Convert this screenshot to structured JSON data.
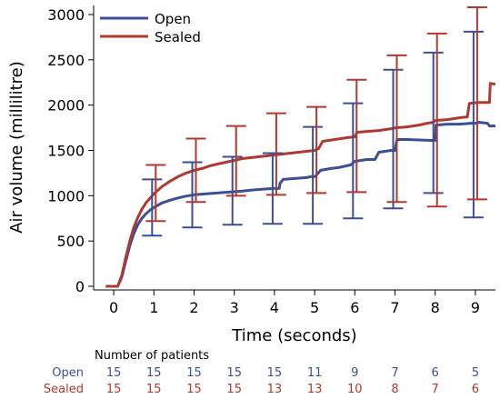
{
  "colors": {
    "open": "#3b4f99",
    "sealed": "#b03a2e",
    "axis": "#000000"
  },
  "chart_data": {
    "type": "line",
    "xlabel": "Time (seconds)",
    "ylabel": "Air volume (millilitre)",
    "xlim": [
      -0.5,
      9.5
    ],
    "ylim": [
      -40,
      3100
    ],
    "x_ticks": [
      0,
      1,
      2,
      3,
      4,
      5,
      6,
      7,
      8,
      9
    ],
    "y_ticks": [
      0,
      500,
      1000,
      1500,
      2000,
      2500,
      3000
    ],
    "grid": false,
    "legend_position": "top-left",
    "series": [
      {
        "name": "Open",
        "color": "#3b4f99",
        "points": [
          [
            -0.2,
            0
          ],
          [
            0.1,
            0
          ],
          [
            0.2,
            100
          ],
          [
            0.3,
            280
          ],
          [
            0.4,
            450
          ],
          [
            0.5,
            580
          ],
          [
            0.6,
            680
          ],
          [
            0.7,
            750
          ],
          [
            0.8,
            800
          ],
          [
            0.9,
            840
          ],
          [
            1.0,
            870
          ],
          [
            1.2,
            920
          ],
          [
            1.4,
            950
          ],
          [
            1.6,
            975
          ],
          [
            1.8,
            995
          ],
          [
            2.0,
            1010
          ],
          [
            2.3,
            1020
          ],
          [
            2.6,
            1030
          ],
          [
            2.9,
            1040
          ],
          [
            3.2,
            1050
          ],
          [
            3.5,
            1065
          ],
          [
            3.8,
            1075
          ],
          [
            4.0,
            1080
          ],
          [
            4.12,
            1080
          ],
          [
            4.14,
            1140
          ],
          [
            4.22,
            1180
          ],
          [
            4.5,
            1190
          ],
          [
            4.8,
            1200
          ],
          [
            4.9,
            1210
          ],
          [
            5.0,
            1210
          ],
          [
            5.05,
            1230
          ],
          [
            5.15,
            1280
          ],
          [
            5.4,
            1300
          ],
          [
            5.6,
            1310
          ],
          [
            5.8,
            1330
          ],
          [
            5.9,
            1340
          ],
          [
            6.0,
            1380
          ],
          [
            6.3,
            1400
          ],
          [
            6.5,
            1400
          ],
          [
            6.6,
            1480
          ],
          [
            6.9,
            1500
          ],
          [
            7.0,
            1500
          ],
          [
            7.05,
            1620
          ],
          [
            7.3,
            1620
          ],
          [
            7.6,
            1615
          ],
          [
            7.9,
            1610
          ],
          [
            8.0,
            1610
          ],
          [
            8.02,
            1780
          ],
          [
            8.3,
            1790
          ],
          [
            8.6,
            1790
          ],
          [
            8.9,
            1800
          ],
          [
            9.0,
            1800
          ],
          [
            9.1,
            1810
          ],
          [
            9.3,
            1800
          ],
          [
            9.35,
            1770
          ],
          [
            9.5,
            1770
          ]
        ],
        "error_bars": [
          {
            "x": 1,
            "low": 560,
            "high": 1180
          },
          {
            "x": 2,
            "low": 650,
            "high": 1370
          },
          {
            "x": 3,
            "low": 680,
            "high": 1430
          },
          {
            "x": 4,
            "low": 690,
            "high": 1470
          },
          {
            "x": 5,
            "low": 690,
            "high": 1760
          },
          {
            "x": 6,
            "low": 750,
            "high": 2020
          },
          {
            "x": 7,
            "low": 860,
            "high": 2390
          },
          {
            "x": 8,
            "low": 1030,
            "high": 2580
          },
          {
            "x": 9,
            "low": 760,
            "high": 2810
          }
        ]
      },
      {
        "name": "Sealed",
        "color": "#b03a2e",
        "points": [
          [
            -0.2,
            0
          ],
          [
            0.1,
            0
          ],
          [
            0.2,
            120
          ],
          [
            0.3,
            320
          ],
          [
            0.4,
            500
          ],
          [
            0.5,
            650
          ],
          [
            0.6,
            760
          ],
          [
            0.7,
            850
          ],
          [
            0.8,
            920
          ],
          [
            0.9,
            970
          ],
          [
            1.0,
            1020
          ],
          [
            1.2,
            1100
          ],
          [
            1.4,
            1160
          ],
          [
            1.6,
            1210
          ],
          [
            1.8,
            1250
          ],
          [
            2.0,
            1280
          ],
          [
            2.2,
            1300
          ],
          [
            2.4,
            1330
          ],
          [
            2.6,
            1350
          ],
          [
            2.8,
            1370
          ],
          [
            3.0,
            1390
          ],
          [
            3.2,
            1410
          ],
          [
            3.4,
            1420
          ],
          [
            3.6,
            1430
          ],
          [
            3.8,
            1440
          ],
          [
            4.0,
            1450
          ],
          [
            4.2,
            1460
          ],
          [
            4.4,
            1470
          ],
          [
            4.6,
            1480
          ],
          [
            4.8,
            1490
          ],
          [
            5.0,
            1500
          ],
          [
            5.1,
            1520
          ],
          [
            5.2,
            1600
          ],
          [
            5.5,
            1620
          ],
          [
            5.8,
            1640
          ],
          [
            6.0,
            1650
          ],
          [
            6.05,
            1700
          ],
          [
            6.3,
            1710
          ],
          [
            6.6,
            1720
          ],
          [
            6.9,
            1740
          ],
          [
            7.0,
            1750
          ],
          [
            7.3,
            1760
          ],
          [
            7.6,
            1780
          ],
          [
            7.8,
            1800
          ],
          [
            7.95,
            1810
          ],
          [
            8.0,
            1830
          ],
          [
            8.3,
            1840
          ],
          [
            8.6,
            1860
          ],
          [
            8.8,
            1870
          ],
          [
            8.85,
            2020
          ],
          [
            9.1,
            2030
          ],
          [
            9.35,
            2030
          ],
          [
            9.37,
            2240
          ],
          [
            9.5,
            2230
          ]
        ],
        "error_bars": [
          {
            "x": 1,
            "low": 720,
            "high": 1340
          },
          {
            "x": 2,
            "low": 930,
            "high": 1630
          },
          {
            "x": 3,
            "low": 1000,
            "high": 1770
          },
          {
            "x": 4,
            "low": 1010,
            "high": 1910
          },
          {
            "x": 5,
            "low": 1030,
            "high": 1980
          },
          {
            "x": 6,
            "low": 1040,
            "high": 2280
          },
          {
            "x": 7,
            "low": 930,
            "high": 2550
          },
          {
            "x": 8,
            "low": 880,
            "high": 2790
          },
          {
            "x": 9,
            "low": 960,
            "high": 3080
          }
        ]
      }
    ],
    "patients_table": {
      "header": "Number of patients",
      "rows": [
        {
          "label": "Open",
          "color": "#3b4f99",
          "values": [
            "15",
            "15",
            "15",
            "15",
            "15",
            "11",
            "9",
            "7",
            "6",
            "5"
          ]
        },
        {
          "label": "Sealed",
          "color": "#b03a2e",
          "values": [
            "15",
            "15",
            "15",
            "15",
            "13",
            "13",
            "10",
            "8",
            "7",
            "6"
          ]
        }
      ]
    }
  }
}
